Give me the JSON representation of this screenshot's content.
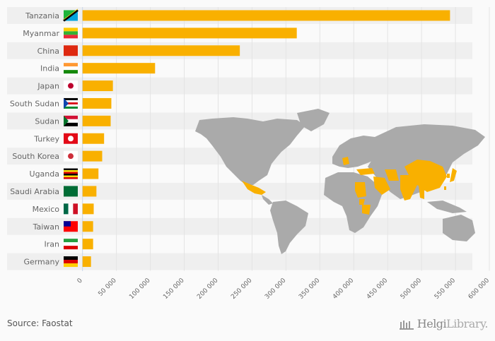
{
  "chart_data": {
    "type": "bar",
    "orientation": "horizontal",
    "title": "",
    "xlabel": "",
    "ylabel": "",
    "categories": [
      "Tanzania",
      "Myanmar",
      "China",
      "India",
      "Japan",
      "South Sudan",
      "Sudan",
      "Turkey",
      "South Korea",
      "Uganda",
      "Saudi Arabia",
      "Mexico",
      "Taiwan",
      "Iran",
      "Germany"
    ],
    "values": [
      542000,
      316000,
      232000,
      107000,
      44800,
      42500,
      41500,
      31800,
      29000,
      23500,
      20500,
      16500,
      15600,
      15600,
      12500
    ],
    "xlim": [
      0,
      600000
    ],
    "xticks": [
      0,
      50000,
      100000,
      150000,
      200000,
      250000,
      300000,
      350000,
      400000,
      450000,
      500000,
      550000,
      600000
    ],
    "xtick_labels": [
      "0",
      "50 000",
      "100 000",
      "150 000",
      "200 000",
      "250 000",
      "300 000",
      "350 000",
      "400 000",
      "450 000",
      "500 000",
      "550 000",
      "600 000"
    ],
    "grid": true,
    "bar_color": "#f9b000",
    "map_highlight_color": "#f9b000",
    "map_base_color": "#aaaaaa"
  },
  "footer": {
    "source": "Source: Faostat",
    "brand_bold": "Helgi",
    "brand_light": "Library."
  }
}
